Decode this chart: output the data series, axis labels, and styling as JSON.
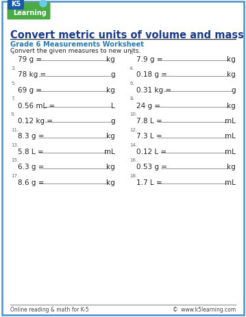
{
  "title": "Convert metric units of volume and mass",
  "subtitle": "Grade 6 Measurements Worksheet",
  "instruction": "Convert the given measures to new units.",
  "border_color": "#4a90c4",
  "title_color": "#1a3a8a",
  "subtitle_color": "#2a7ab0",
  "footer_left": "Online reading & math for K-5",
  "footer_right": "©  www.k5learning.com",
  "problems": [
    {
      "num": "1",
      "question": "79 g =",
      "unit": "kg",
      "col": 0
    },
    {
      "num": "2",
      "question": "7.9 g =",
      "unit": "kg",
      "col": 1
    },
    {
      "num": "3",
      "question": "78 kg =",
      "unit": "g",
      "col": 0
    },
    {
      "num": "4",
      "question": "0.18 g =",
      "unit": "kg",
      "col": 1
    },
    {
      "num": "5",
      "question": "69 g =",
      "unit": "kg",
      "col": 0
    },
    {
      "num": "6",
      "question": "0.31 kg =",
      "unit": "g",
      "col": 1
    },
    {
      "num": "7",
      "question": "0.56 mL =",
      "unit": "L",
      "col": 0
    },
    {
      "num": "8",
      "question": "24 g =",
      "unit": "kg",
      "col": 1
    },
    {
      "num": "9",
      "question": "0.12 kg =",
      "unit": "g",
      "col": 0
    },
    {
      "num": "10",
      "question": "7.8 L =",
      "unit": "mL",
      "col": 1
    },
    {
      "num": "11",
      "question": "8.3 g =",
      "unit": "kg",
      "col": 0
    },
    {
      "num": "12",
      "question": "7.3 L =",
      "unit": "mL",
      "col": 1
    },
    {
      "num": "13",
      "question": "5.8 L =",
      "unit": "mL",
      "col": 0
    },
    {
      "num": "14",
      "question": "0.12 L =",
      "unit": "mL",
      "col": 1
    },
    {
      "num": "15",
      "question": "6.3 g =",
      "unit": "kg",
      "col": 0
    },
    {
      "num": "16",
      "question": "0.53 g =",
      "unit": "kg",
      "col": 1
    },
    {
      "num": "17",
      "question": "8.6 g =",
      "unit": "kg",
      "col": 0
    },
    {
      "num": "18",
      "question": "1.7 L =",
      "unit": "mL",
      "col": 1
    }
  ],
  "background": "#ffffff",
  "text_color": "#222222",
  "line_color": "#999999"
}
